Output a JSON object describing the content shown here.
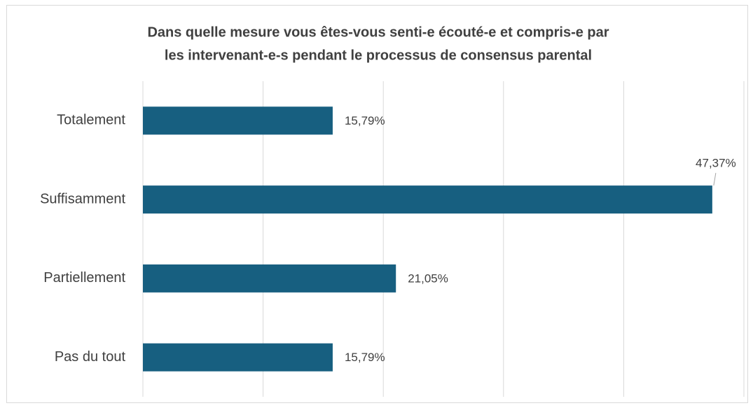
{
  "chart_data": {
    "type": "bar",
    "orientation": "horizontal",
    "title": [
      "Dans quelle mesure vous êtes-vous senti-e écouté-e et compris-e par",
      "les intervenant-e-s pendant le processus de consensus parental"
    ],
    "categories": [
      "Totalement",
      "Suffisamment",
      "Partiellement",
      "Pas du tout"
    ],
    "values": [
      15.79,
      47.37,
      21.05,
      15.79
    ],
    "value_labels": [
      "15,79%",
      "47,37%",
      "21,05%",
      "15,79%"
    ],
    "color": "#175f80",
    "xlim": [
      0,
      50
    ],
    "xticks": [
      0,
      10,
      20,
      30,
      40,
      50
    ],
    "grid": true
  }
}
